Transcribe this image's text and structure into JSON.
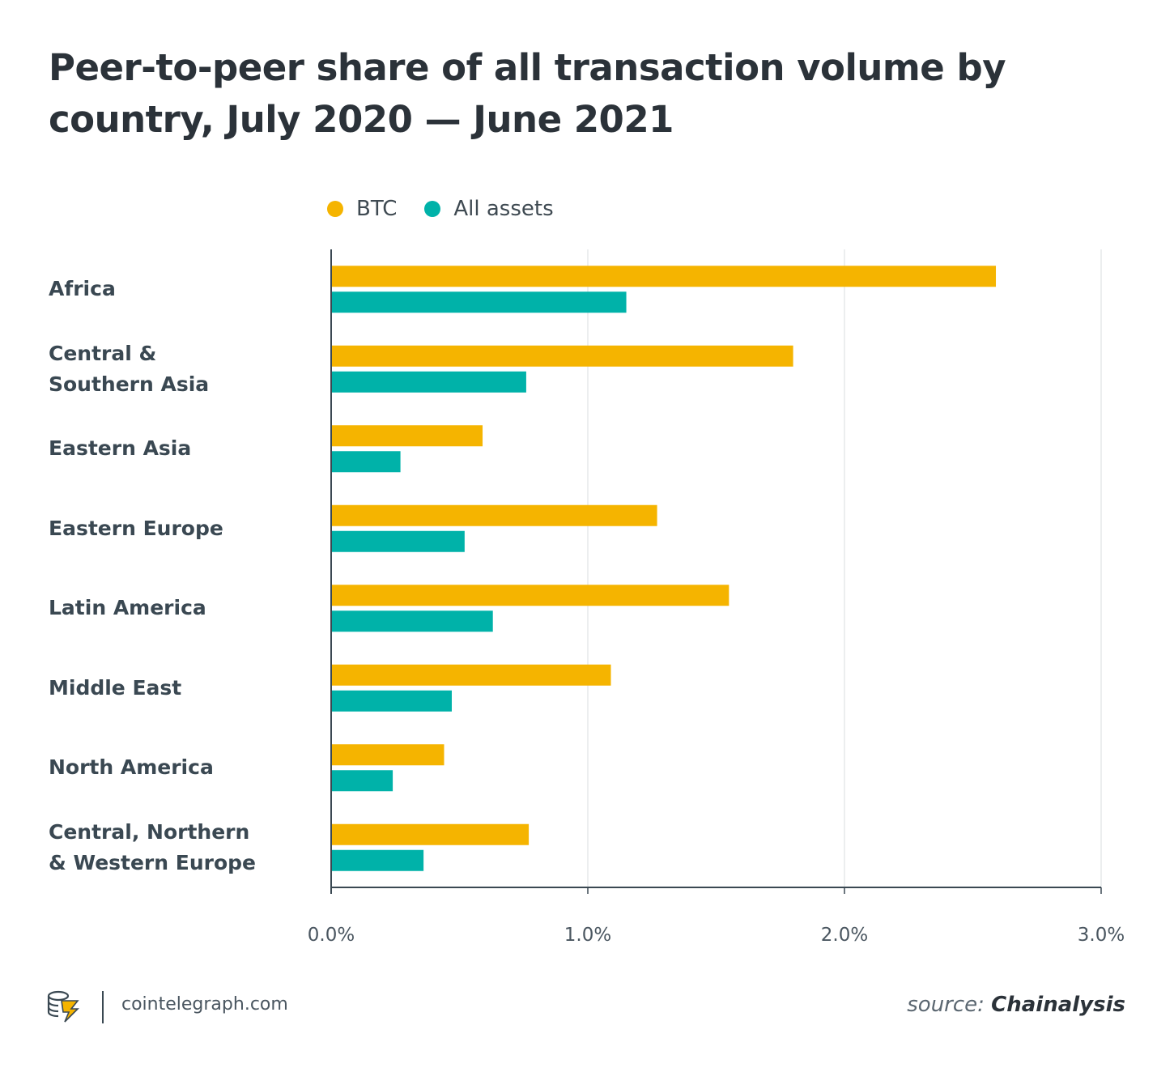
{
  "chart_data": {
    "type": "bar",
    "orientation": "horizontal",
    "title": "Peer-to-peer share of all transaction volume by country, July 2020 — June 2021",
    "categories": [
      [
        "Africa"
      ],
      [
        "Central &",
        "Southern Asia"
      ],
      [
        "Eastern Asia"
      ],
      [
        "Eastern Europe"
      ],
      [
        "Latin America"
      ],
      [
        "Middle East"
      ],
      [
        "North America"
      ],
      [
        "Central, Northern",
        "& Western Europe"
      ]
    ],
    "series": [
      {
        "name": "BTC",
        "color": "#f5b400",
        "values": [
          2.59,
          1.8,
          0.59,
          1.27,
          1.55,
          1.09,
          0.44,
          0.77
        ]
      },
      {
        "name": "All assets",
        "color": "#00b2a9",
        "values": [
          1.15,
          0.76,
          0.27,
          0.52,
          0.63,
          0.47,
          0.24,
          0.36
        ]
      }
    ],
    "xlim": [
      0,
      3
    ],
    "xticks": [
      "0.0%",
      "1.0%",
      "2.0%",
      "3.0%"
    ],
    "xlabel": "",
    "ylabel": "",
    "grid": true,
    "legend": "top"
  },
  "footer": {
    "site": "cointelegraph.com",
    "source_prefix": "source:",
    "source_name": "Chainalysis"
  },
  "logo_icon": "cointelegraph-logo-icon"
}
